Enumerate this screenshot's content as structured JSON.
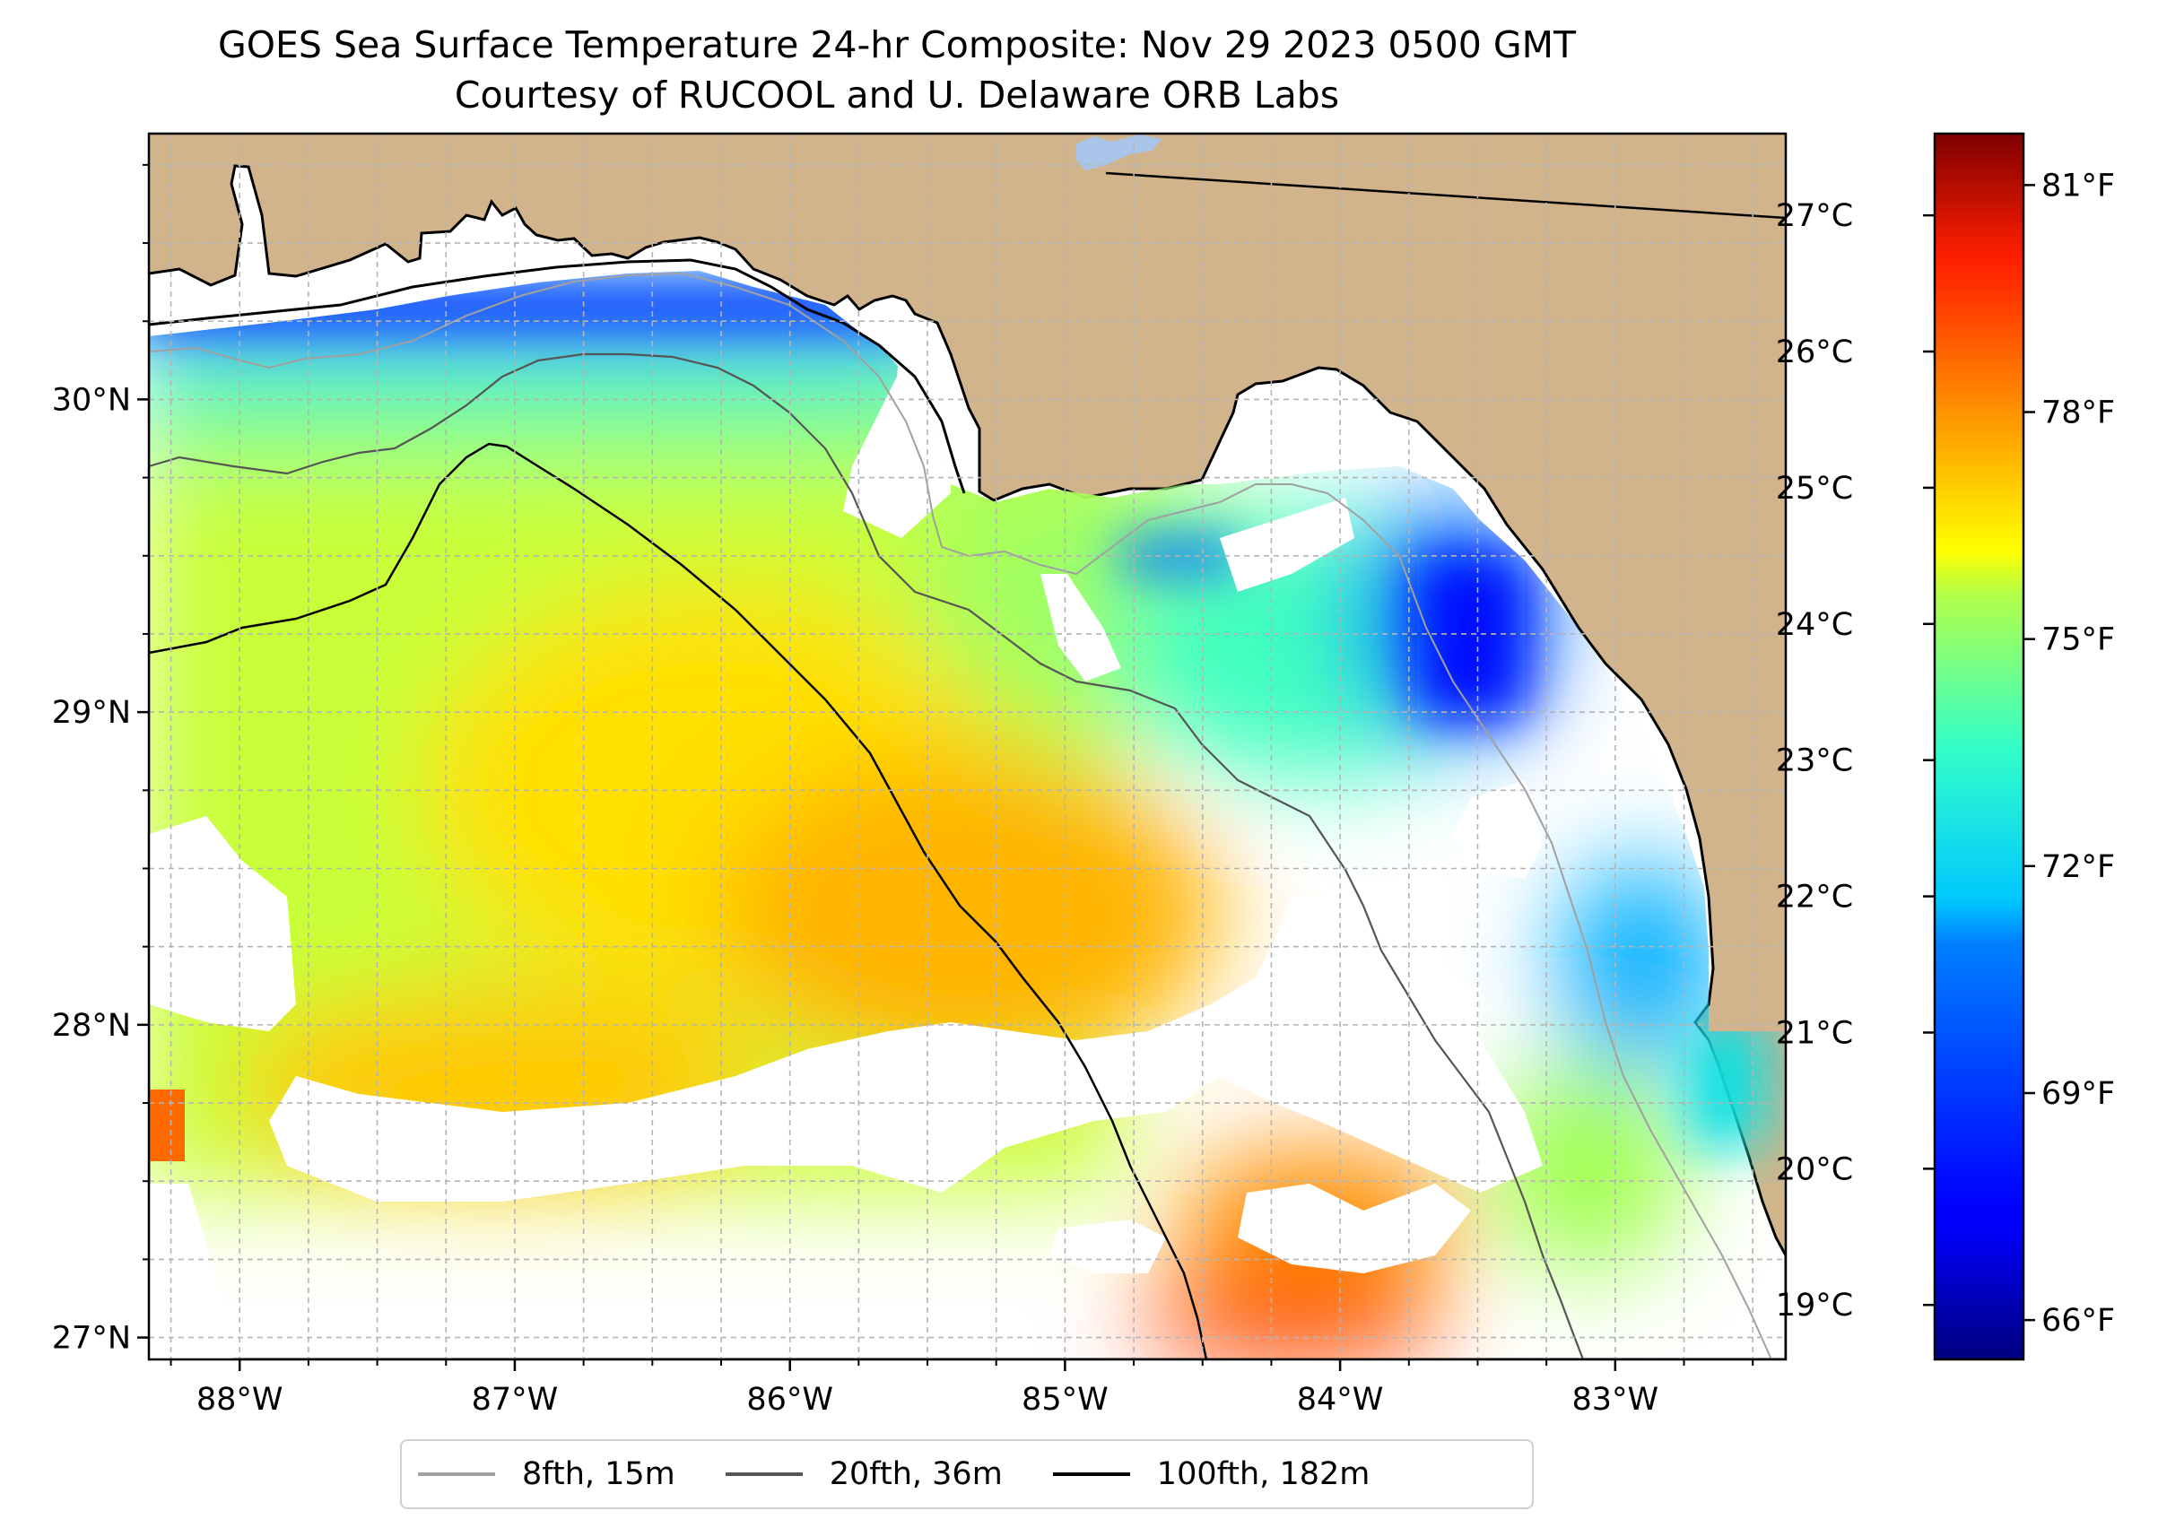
{
  "title": {
    "line1": "GOES Sea Surface Temperature 24-hr Composite: Nov 29 2023 0500 GMT",
    "line2": "Courtesy of RUCOOL and U. Delaware ORB Labs"
  },
  "map": {
    "region": "Eastern Gulf of Mexico / Florida Big Bend",
    "lon_range": [
      -88.33,
      -82.38
    ],
    "lat_range": [
      26.93,
      30.85
    ],
    "lon_ticks": [
      {
        "value": -88,
        "label": "88°W"
      },
      {
        "value": -87,
        "label": "87°W"
      },
      {
        "value": -86,
        "label": "86°W"
      },
      {
        "value": -85,
        "label": "85°W"
      },
      {
        "value": -84,
        "label": "84°W"
      },
      {
        "value": -83,
        "label": "83°W"
      }
    ],
    "lat_ticks": [
      {
        "value": 30,
        "label": "30°N"
      },
      {
        "value": 29,
        "label": "29°N"
      },
      {
        "value": 28,
        "label": "28°N"
      },
      {
        "value": 27,
        "label": "27°N"
      }
    ],
    "gridlines": "dashed grey every 0.25°",
    "land_color": "#d2b48c",
    "no_data_color": "#ffffff"
  },
  "colorbar": {
    "colormap": "jet",
    "celsius_range": [
      18.6,
      27.6
    ],
    "celsius_ticks": [
      {
        "value": 27,
        "label": "27°C"
      },
      {
        "value": 26,
        "label": "26°C"
      },
      {
        "value": 25,
        "label": "25°C"
      },
      {
        "value": 24,
        "label": "24°C"
      },
      {
        "value": 23,
        "label": "23°C"
      },
      {
        "value": 22,
        "label": "22°C"
      },
      {
        "value": 21,
        "label": "21°C"
      },
      {
        "value": 20,
        "label": "20°C"
      },
      {
        "value": 19,
        "label": "19°C"
      }
    ],
    "fahrenheit_ticks": [
      {
        "value": 81,
        "label": "81°F"
      },
      {
        "value": 78,
        "label": "78°F"
      },
      {
        "value": 75,
        "label": "75°F"
      },
      {
        "value": 72,
        "label": "72°F"
      },
      {
        "value": 69,
        "label": "69°F"
      },
      {
        "value": 66,
        "label": "66°F"
      }
    ]
  },
  "legend": {
    "placement": "bottom-center",
    "items": [
      {
        "label": "8fth, 15m",
        "color": "#a0a0a0"
      },
      {
        "label": "20fth, 36m",
        "color": "#555555"
      },
      {
        "label": "100fth, 182m",
        "color": "#000000"
      }
    ]
  }
}
